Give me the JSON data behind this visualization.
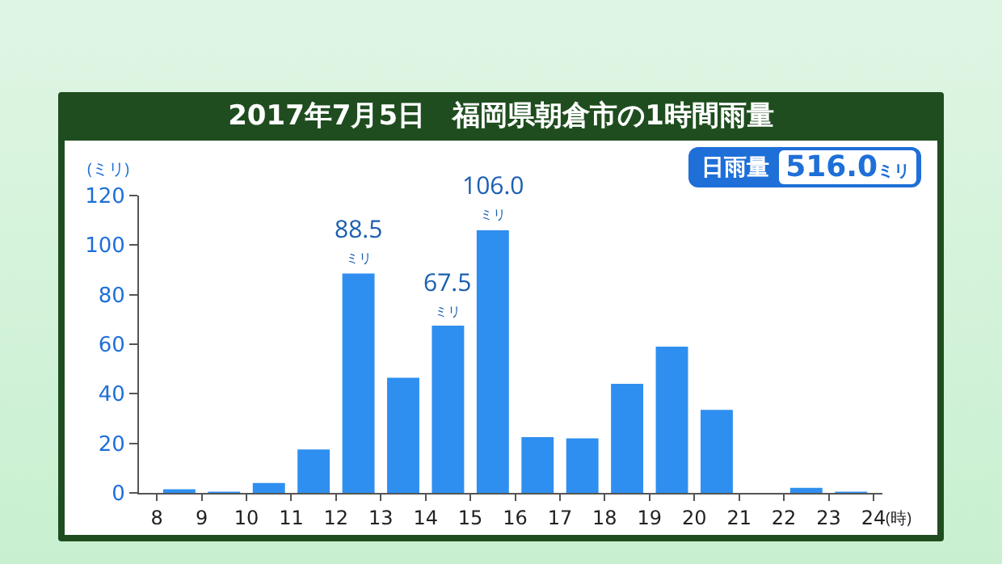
{
  "chart_data": {
    "type": "bar",
    "title": "2017年7月5日　福岡県朝倉市の1時間雨量",
    "ylabel": "(ミリ)",
    "xlabel": "(時)",
    "x": [
      8.5,
      9.5,
      10.5,
      11.5,
      12.5,
      13.5,
      14.5,
      15.5,
      16.5,
      17.5,
      18.5,
      19.5,
      20.5,
      21.5,
      22.5,
      23.5
    ],
    "values": [
      1.5,
      0.5,
      4,
      17.5,
      88.5,
      46.5,
      67.5,
      106.0,
      22.5,
      22,
      44,
      59,
      33.5,
      0,
      2,
      0.5
    ],
    "value_labels": [
      null,
      null,
      null,
      null,
      "88.5\nミリ",
      null,
      "67.5\nミリ",
      "106.0\nミリ",
      null,
      null,
      null,
      null,
      null,
      null,
      null,
      null
    ],
    "color": "#2e8ff0",
    "xlim": [
      7.6,
      24.2
    ],
    "xticks": [
      8,
      9,
      10,
      11,
      12,
      13,
      14,
      15,
      16,
      17,
      18,
      19,
      20,
      21,
      22,
      23,
      24
    ],
    "ylim": [
      0,
      120
    ],
    "yticks": [
      0,
      20,
      40,
      60,
      80,
      100,
      120
    ],
    "grid": false,
    "legend": false,
    "annotations": [
      "日雨量\n516.0ミリ"
    ]
  }
}
